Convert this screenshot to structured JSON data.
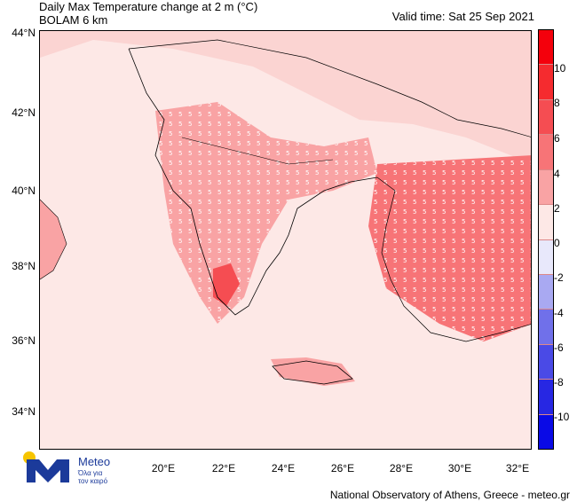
{
  "title": {
    "line1": "Daily Max Temperature change at 2 m (°C)",
    "line2": "BOLAM 6 km"
  },
  "valid_time": "Valid time: Sat 25 Sep 2021",
  "lat_labels": [
    "44°N",
    "42°N",
    "40°N",
    "38°N",
    "36°N",
    "34°N"
  ],
  "lon_labels": [
    "20°E",
    "22°E",
    "24°E",
    "26°E",
    "28°E",
    "30°E",
    "32°E"
  ],
  "colorbar": {
    "labels": [
      "10",
      "8",
      "6",
      "4",
      "2",
      "0",
      "-2",
      "-4",
      "-6",
      "-8",
      "-10"
    ],
    "colors": [
      "#f4000c",
      "#f52b2f",
      "#f54d52",
      "#f77477",
      "#f9a3a4",
      "#fde8e6",
      "#e8e8fb",
      "#a9a9f2",
      "#7070ea",
      "#4a4ae6",
      "#2727e3",
      "#0a0ae6"
    ]
  },
  "footer": "National Observatory of Athens, Greece - meteo.gr",
  "logo": {
    "name": "Meteo",
    "tagline_line1": "Όλα για",
    "tagline_line2": "τον καιρό"
  }
}
